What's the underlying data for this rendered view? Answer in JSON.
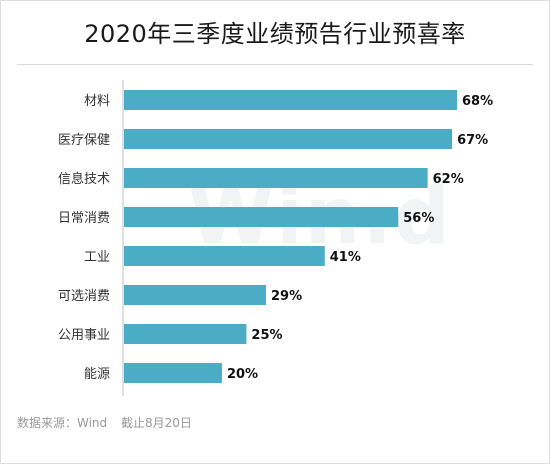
{
  "title": "2020年三季度业绩预告行业预喜率",
  "watermark": "Win.d",
  "footer": {
    "source": "数据来源：Wind",
    "cutoff": "截止8月20日"
  },
  "colors": {
    "bar": "#4bacc6"
  },
  "chart_data": {
    "type": "bar",
    "orientation": "horizontal",
    "categories": [
      "材料",
      "医疗保健",
      "信息技术",
      "日常消费",
      "工业",
      "可选消费",
      "公用事业",
      "能源"
    ],
    "values": [
      68,
      67,
      62,
      56,
      41,
      29,
      25,
      20
    ],
    "value_labels": [
      "68%",
      "67%",
      "62%",
      "56%",
      "41%",
      "29%",
      "25%",
      "20%"
    ],
    "grid": false
  }
}
